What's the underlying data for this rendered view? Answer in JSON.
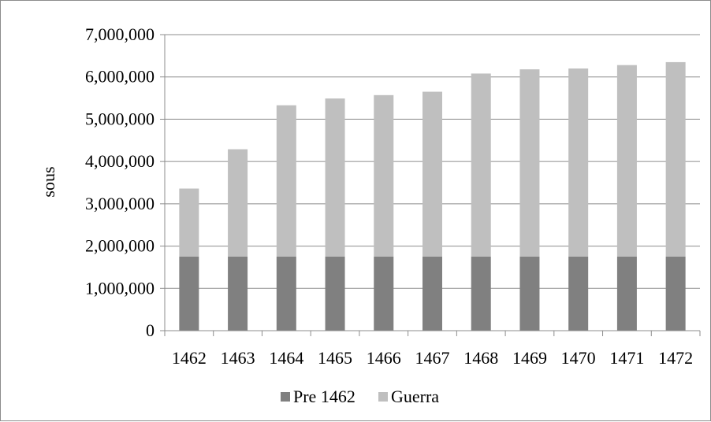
{
  "chart_data": {
    "type": "bar",
    "stacked": true,
    "categories": [
      "1462",
      "1463",
      "1464",
      "1465",
      "1466",
      "1467",
      "1468",
      "1469",
      "1470",
      "1471",
      "1472"
    ],
    "series": [
      {
        "name": "Pre 1462",
        "color": "#808080",
        "values": [
          1750000,
          1750000,
          1750000,
          1750000,
          1750000,
          1750000,
          1750000,
          1750000,
          1750000,
          1750000,
          1750000
        ]
      },
      {
        "name": "Guerra",
        "color": "#bfbfbf",
        "values": [
          1610000,
          2540000,
          3580000,
          3740000,
          3820000,
          3900000,
          4330000,
          4430000,
          4450000,
          4530000,
          4600000
        ]
      }
    ],
    "ylabel": "sous",
    "xlabel": "",
    "title": "",
    "ylim": [
      0,
      7000000
    ],
    "yticks": [
      "0",
      "1,000,000",
      "2,000,000",
      "3,000,000",
      "4,000,000",
      "5,000,000",
      "6,000,000",
      "7,000,000"
    ],
    "ytick_values": [
      0,
      1000000,
      2000000,
      3000000,
      4000000,
      5000000,
      6000000,
      7000000
    ],
    "grid": true,
    "legend_position": "bottom",
    "gridline_color": "#8c8c8c"
  }
}
